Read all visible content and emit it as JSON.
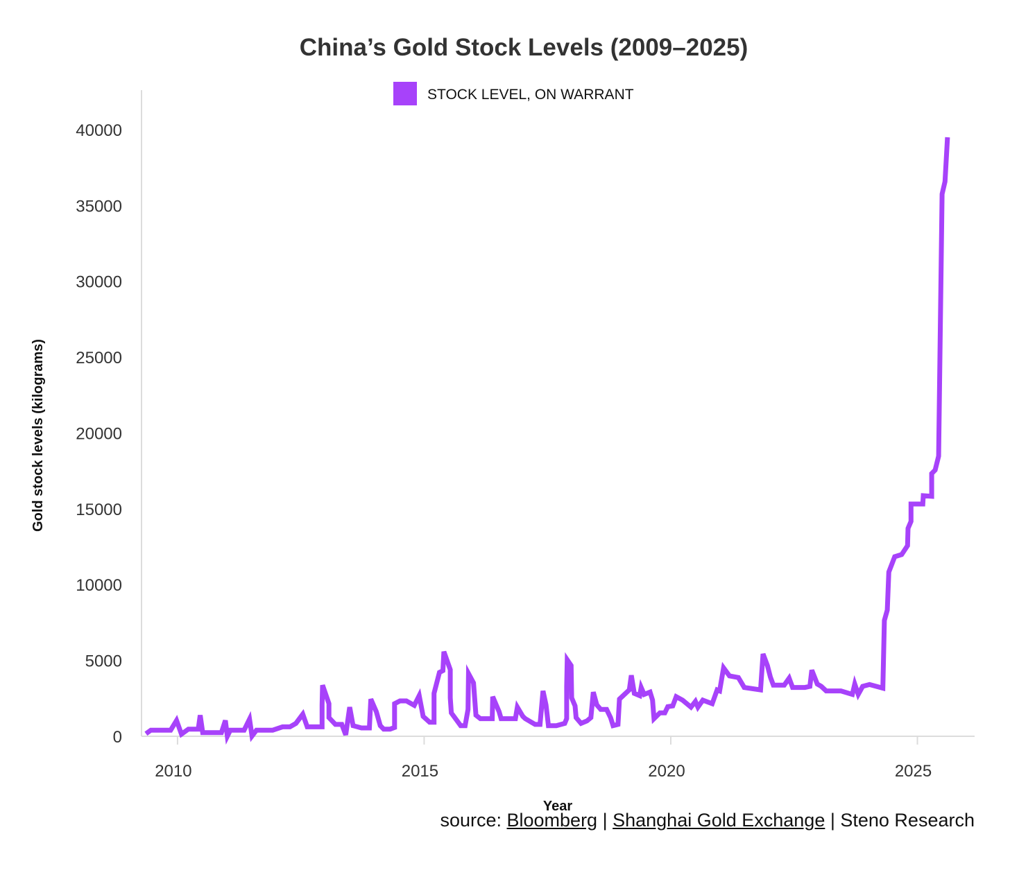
{
  "chart_data": {
    "type": "line",
    "title": "China’s Gold Stock Levels (2009–2025)",
    "xlabel": "Year",
    "ylabel": "Gold stock levels (kilograms)",
    "xlim": [
      2009.27,
      2026.16
    ],
    "ylim": [
      0,
      42600
    ],
    "xticks": [
      2010,
      2015,
      2020,
      2025
    ],
    "yticks": [
      0,
      5000,
      10000,
      15000,
      20000,
      25000,
      30000,
      35000,
      40000
    ],
    "grid": false,
    "legend": {
      "position": "top-center",
      "entries": [
        "STOCK LEVEL, ON WARRANT"
      ]
    },
    "colors": {
      "series": "#a742fa",
      "axis": "#dcdcdc",
      "text": "#333333"
    },
    "series": [
      {
        "name": "STOCK LEVEL, ON WARRANT",
        "x": [
          2009.36,
          2009.46,
          2009.86,
          2009.98,
          2010.08,
          2010.22,
          2010.42,
          2010.46,
          2010.51,
          2010.89,
          2010.97,
          2011.01,
          2011.07,
          2011.35,
          2011.46,
          2011.51,
          2011.6,
          2011.93,
          2012.13,
          2012.28,
          2012.4,
          2012.54,
          2012.63,
          2012.93,
          2012.93,
          2012.94,
          2013.07,
          2013.07,
          2013.2,
          2013.33,
          2013.41,
          2013.49,
          2013.56,
          2013.73,
          2013.89,
          2013.92,
          2014.03,
          2014.11,
          2014.18,
          2014.31,
          2014.4,
          2014.4,
          2014.51,
          2014.64,
          2014.8,
          2014.9,
          2014.98,
          2015.11,
          2015.2,
          2015.2,
          2015.31,
          2015.38,
          2015.4,
          2015.53,
          2015.53,
          2015.55,
          2015.74,
          2015.83,
          2015.89,
          2015.9,
          2016.0,
          2016.05,
          2016.14,
          2016.38,
          2016.39,
          2016.52,
          2016.56,
          2016.85,
          2016.89,
          2017.0,
          2017.05,
          2017.25,
          2017.35,
          2017.41,
          2017.47,
          2017.52,
          2017.68,
          2017.85,
          2017.89,
          2017.89,
          2017.9,
          2017.98,
          2017.99,
          2018.06,
          2018.08,
          2018.18,
          2018.3,
          2018.38,
          2018.43,
          2018.5,
          2018.58,
          2018.7,
          2018.78,
          2018.83,
          2018.93,
          2018.96,
          2019.16,
          2019.2,
          2019.26,
          2019.37,
          2019.4,
          2019.46,
          2019.58,
          2019.63,
          2019.66,
          2019.78,
          2019.88,
          2019.94,
          2020.04,
          2020.11,
          2020.24,
          2020.41,
          2020.5,
          2020.55,
          2020.65,
          2020.84,
          2020.94,
          2020.99,
          2021.07,
          2021.19,
          2021.37,
          2021.49,
          2021.82,
          2021.87,
          2021.96,
          2022.02,
          2022.08,
          2022.3,
          2022.4,
          2022.47,
          2022.72,
          2022.82,
          2022.86,
          2022.97,
          2023.05,
          2023.15,
          2023.45,
          2023.68,
          2023.73,
          2023.8,
          2023.89,
          2024.03,
          2024.3,
          2024.33,
          2024.39,
          2024.42,
          2024.54,
          2024.68,
          2024.8,
          2024.81,
          2024.87,
          2024.87,
          2025.11,
          2025.12,
          2025.29,
          2025.29,
          2025.36,
          2025.43,
          2025.5,
          2025.56,
          2025.61
        ],
        "y": [
          170,
          400,
          400,
          1040,
          140,
          470,
          470,
          1390,
          240,
          240,
          1040,
          0,
          400,
          400,
          1130,
          20,
          400,
          400,
          620,
          620,
          850,
          1460,
          620,
          620,
          2070,
          3370,
          2150,
          1230,
          780,
          780,
          90,
          1920,
          700,
          550,
          550,
          2450,
          1620,
          700,
          470,
          470,
          580,
          2150,
          2330,
          2330,
          2040,
          2680,
          1310,
          930,
          930,
          2830,
          4210,
          4330,
          5580,
          4390,
          2530,
          1540,
          700,
          700,
          1770,
          4130,
          3520,
          1390,
          1160,
          1160,
          2610,
          1620,
          1160,
          1160,
          1920,
          1310,
          1160,
          780,
          780,
          2990,
          2070,
          700,
          700,
          850,
          1160,
          3290,
          5040,
          4660,
          2530,
          2000,
          1230,
          850,
          1010,
          1230,
          2910,
          2070,
          1770,
          1770,
          1230,
          700,
          780,
          2450,
          3060,
          4020,
          2830,
          2680,
          3220,
          2760,
          2910,
          2380,
          1160,
          1540,
          1540,
          1950,
          2000,
          2610,
          2380,
          1920,
          2300,
          1920,
          2380,
          2150,
          3060,
          2990,
          4510,
          3980,
          3870,
          3220,
          3060,
          5430,
          4660,
          3900,
          3370,
          3370,
          3830,
          3220,
          3220,
          3290,
          4360,
          3440,
          3290,
          2990,
          2990,
          2760,
          3440,
          2760,
          3290,
          3410,
          3170,
          7640,
          8320,
          10830,
          11840,
          11980,
          12570,
          13710,
          14170,
          15310,
          15310,
          15860,
          15820,
          17320,
          17550,
          18470,
          35750,
          36570,
          39490
        ]
      }
    ]
  },
  "source": {
    "prefix": "source: ",
    "links": [
      "Bloomberg",
      "Shanghai Gold Exchange"
    ],
    "sep": " | ",
    "suffix": "Steno Research"
  }
}
